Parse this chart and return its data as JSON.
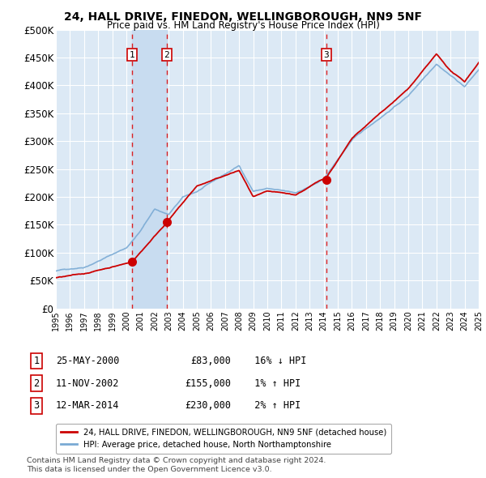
{
  "title": "24, HALL DRIVE, FINEDON, WELLINGBOROUGH, NN9 5NF",
  "subtitle": "Price paid vs. HM Land Registry's House Price Index (HPI)",
  "background_color": "#ffffff",
  "plot_bg_color": "#dce9f5",
  "grid_color": "#ffffff",
  "ylim": [
    0,
    500000
  ],
  "yticks": [
    0,
    50000,
    100000,
    150000,
    200000,
    250000,
    300000,
    350000,
    400000,
    450000,
    500000
  ],
  "ytick_labels": [
    "£0",
    "£50K",
    "£100K",
    "£150K",
    "£200K",
    "£250K",
    "£300K",
    "£350K",
    "£400K",
    "£450K",
    "£500K"
  ],
  "transactions": [
    {
      "label": 1,
      "date": "25-MAY-2000",
      "year": 2000.4,
      "price": 83000,
      "hpi_rel": "16% ↓ HPI"
    },
    {
      "label": 2,
      "date": "11-NOV-2002",
      "year": 2002.86,
      "price": 155000,
      "hpi_rel": "1% ↑ HPI"
    },
    {
      "label": 3,
      "date": "12-MAR-2014",
      "year": 2014.2,
      "price": 230000,
      "hpi_rel": "2% ↑ HPI"
    }
  ],
  "red_line_color": "#cc0000",
  "blue_line_color": "#7aaad4",
  "vline_color": "#dd0000",
  "span_color": "#c8dcf0",
  "legend_entry1": "24, HALL DRIVE, FINEDON, WELLINGBOROUGH, NN9 5NF (detached house)",
  "legend_entry2": "HPI: Average price, detached house, North Northamptonshire",
  "footer1": "Contains HM Land Registry data © Crown copyright and database right 2024.",
  "footer2": "This data is licensed under the Open Government Licence v3.0.",
  "xmin": 1995,
  "xmax": 2025
}
